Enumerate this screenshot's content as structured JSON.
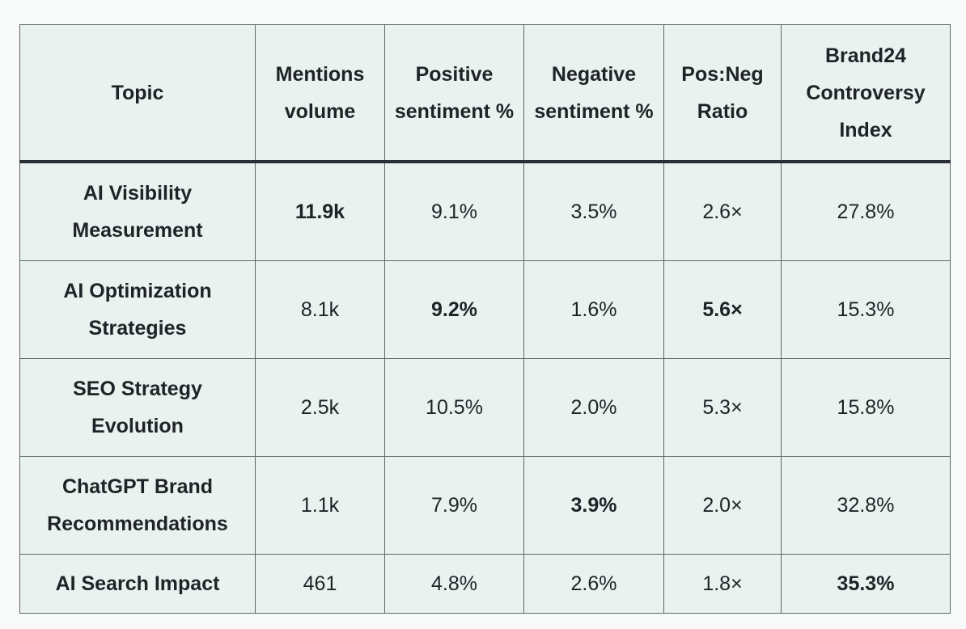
{
  "table": {
    "headers": [
      "Topic",
      "Mentions volume",
      "Positive sentiment %",
      "Negative sentiment %",
      "Pos:Neg Ratio",
      "Brand24 Controversy Index"
    ],
    "rows": [
      {
        "topic": "AI Visibility Measurement",
        "cells": [
          "11.9k",
          "9.1%",
          "3.5%",
          "2.6×",
          "27.8%"
        ],
        "bold": [
          true,
          false,
          false,
          false,
          false
        ]
      },
      {
        "topic": "AI Optimization Strategies",
        "cells": [
          "8.1k",
          "9.2%",
          "1.6%",
          "5.6×",
          "15.3%"
        ],
        "bold": [
          false,
          true,
          false,
          true,
          false
        ]
      },
      {
        "topic": "SEO Strategy Evolution",
        "cells": [
          "2.5k",
          "10.5%",
          "2.0%",
          "5.3×",
          "15.8%"
        ],
        "bold": [
          false,
          false,
          false,
          false,
          false
        ]
      },
      {
        "topic": "ChatGPT Brand Recommendations",
        "cells": [
          "1.1k",
          "7.9%",
          "3.9%",
          "2.0×",
          "32.8%"
        ],
        "bold": [
          false,
          false,
          true,
          false,
          false
        ]
      },
      {
        "topic": "AI Search Impact",
        "cells": [
          "461",
          "4.8%",
          "2.6%",
          "1.8×",
          "35.3%"
        ],
        "bold": [
          false,
          false,
          false,
          false,
          true
        ]
      }
    ]
  }
}
